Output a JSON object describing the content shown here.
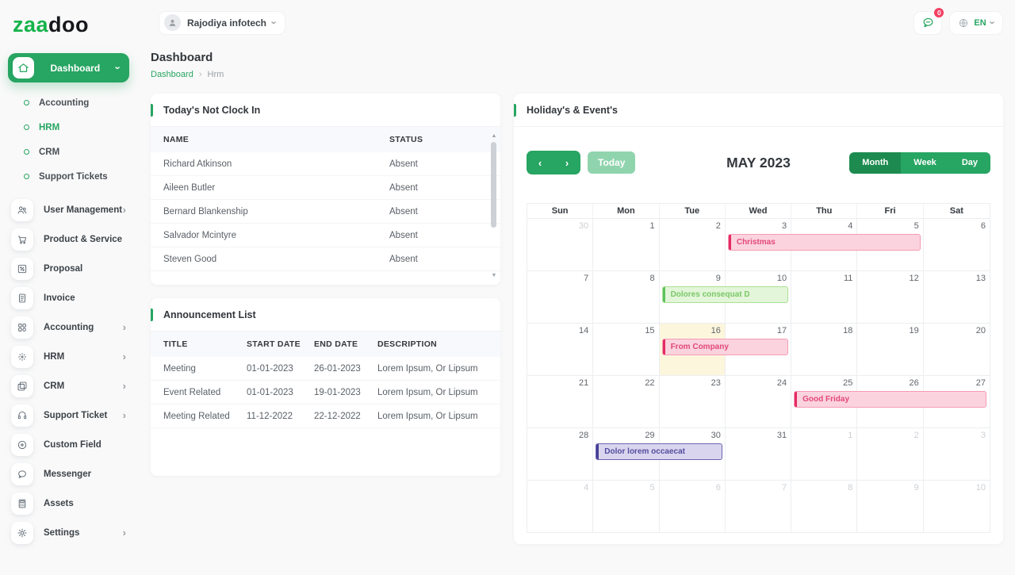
{
  "colors": {
    "primary": "#27a562",
    "primary_dark": "#1d8b4f",
    "primary_light": "#90d4ae",
    "logo_green": "#15b34a",
    "badge_red": "#f43f63",
    "today_bg": "#fcf6dd",
    "ev_pink_bg": "#fbd3de",
    "ev_pink_border": "#f59cb4",
    "ev_pink_accent": "#e42a62",
    "ev_pink_text": "#e2487b",
    "ev_green_bg": "#e3f6d9",
    "ev_green_border": "#a8e295",
    "ev_green_accent": "#5fc35f",
    "ev_green_text": "#7ac768",
    "ev_purple_bg": "#d9d5ee",
    "ev_purple_border": "#6c65b2",
    "ev_purple_accent": "#453f95",
    "ev_purple_text": "#534d9f"
  },
  "brand": {
    "logo_green": "zaa",
    "logo_dark": "doo"
  },
  "topbar": {
    "company": "Rajodiya infotech",
    "chat_badge": "0",
    "language": "EN"
  },
  "page": {
    "title": "Dashboard",
    "breadcrumb_root": "Dashboard",
    "breadcrumb_current": "Hrm"
  },
  "sidebar": {
    "dashboard": {
      "label": "Dashboard"
    },
    "dashboard_sub": [
      {
        "label": "Accounting",
        "active": false
      },
      {
        "label": "HRM",
        "active": true
      },
      {
        "label": "CRM",
        "active": false
      },
      {
        "label": "Support Tickets",
        "active": false
      }
    ],
    "items": [
      {
        "label": "User Management",
        "icon": "users-icon",
        "chevron": true
      },
      {
        "label": "Product & Service",
        "icon": "cart-icon",
        "chevron": false
      },
      {
        "label": "Proposal",
        "icon": "proposal-icon",
        "chevron": false
      },
      {
        "label": "Invoice",
        "icon": "invoice-icon",
        "chevron": false
      },
      {
        "label": "Accounting",
        "icon": "accounting-icon",
        "chevron": true
      },
      {
        "label": "HRM",
        "icon": "hrm-icon",
        "chevron": true
      },
      {
        "label": "CRM",
        "icon": "crm-icon",
        "chevron": true
      },
      {
        "label": "Support Ticket",
        "icon": "headset-icon",
        "chevron": true
      },
      {
        "label": "Custom Field",
        "icon": "custom-field-icon",
        "chevron": false
      },
      {
        "label": "Messenger",
        "icon": "messenger-icon",
        "chevron": false
      },
      {
        "label": "Assets",
        "icon": "assets-icon",
        "chevron": false
      },
      {
        "label": "Settings",
        "icon": "settings-icon",
        "chevron": true
      }
    ]
  },
  "clockin": {
    "title": "Today's Not Clock In",
    "columns": [
      "NAME",
      "STATUS"
    ],
    "rows": [
      [
        "Richard Atkinson",
        "Absent"
      ],
      [
        "Aileen Butler",
        "Absent"
      ],
      [
        "Bernard Blankenship",
        "Absent"
      ],
      [
        "Salvador Mcintyre",
        "Absent"
      ],
      [
        "Steven Good",
        "Absent"
      ]
    ]
  },
  "announcements": {
    "title": "Announcement List",
    "columns": [
      "TITLE",
      "START DATE",
      "END DATE",
      "DESCRIPTION"
    ],
    "rows": [
      [
        "Meeting",
        "01-01-2023",
        "26-01-2023",
        "Lorem Ipsum, Or Lipsum"
      ],
      [
        "Event Related",
        "01-01-2023",
        "19-01-2023",
        "Lorem Ipsum, Or Lipsum"
      ],
      [
        "Meeting Related",
        "11-12-2022",
        "22-12-2022",
        "Lorem Ipsum, Or Lipsum"
      ]
    ]
  },
  "calendar": {
    "title": "Holiday's & Event's",
    "month_title": "MAY 2023",
    "today_label": "Today",
    "views": [
      "Month",
      "Week",
      "Day"
    ],
    "active_view": "Month",
    "weekdays": [
      "Sun",
      "Mon",
      "Tue",
      "Wed",
      "Thu",
      "Fri",
      "Sat"
    ],
    "weeks": [
      [
        {
          "n": "30",
          "muted": true
        },
        {
          "n": "1"
        },
        {
          "n": "2"
        },
        {
          "n": "3"
        },
        {
          "n": "4"
        },
        {
          "n": "5"
        },
        {
          "n": "6"
        }
      ],
      [
        {
          "n": "7"
        },
        {
          "n": "8"
        },
        {
          "n": "9"
        },
        {
          "n": "10"
        },
        {
          "n": "11"
        },
        {
          "n": "12"
        },
        {
          "n": "13"
        }
      ],
      [
        {
          "n": "14"
        },
        {
          "n": "15"
        },
        {
          "n": "16",
          "today": true
        },
        {
          "n": "17"
        },
        {
          "n": "18"
        },
        {
          "n": "19"
        },
        {
          "n": "20"
        }
      ],
      [
        {
          "n": "21"
        },
        {
          "n": "22"
        },
        {
          "n": "23"
        },
        {
          "n": "24"
        },
        {
          "n": "25"
        },
        {
          "n": "26"
        },
        {
          "n": "27"
        }
      ],
      [
        {
          "n": "28"
        },
        {
          "n": "29"
        },
        {
          "n": "30"
        },
        {
          "n": "31"
        },
        {
          "n": "1",
          "muted": true
        },
        {
          "n": "2",
          "muted": true
        },
        {
          "n": "3",
          "muted": true
        }
      ],
      [
        {
          "n": "4",
          "muted": true
        },
        {
          "n": "5",
          "muted": true
        },
        {
          "n": "6",
          "muted": true
        },
        {
          "n": "7",
          "muted": true
        },
        {
          "n": "8",
          "muted": true
        },
        {
          "n": "9",
          "muted": true
        },
        {
          "n": "10",
          "muted": true
        }
      ]
    ],
    "events": [
      {
        "label": "Christmas",
        "week": 0,
        "col": 3,
        "span": 3,
        "type": "pink"
      },
      {
        "label": "Dolores consequat D",
        "week": 1,
        "col": 2,
        "span": 2,
        "type": "green"
      },
      {
        "label": "From Company",
        "week": 2,
        "col": 2,
        "span": 2,
        "type": "pink"
      },
      {
        "label": "Good Friday",
        "week": 3,
        "col": 4,
        "span": 3,
        "type": "pink"
      },
      {
        "label": "Dolor lorem occaecat",
        "week": 4,
        "col": 1,
        "span": 2,
        "type": "purple"
      }
    ]
  }
}
